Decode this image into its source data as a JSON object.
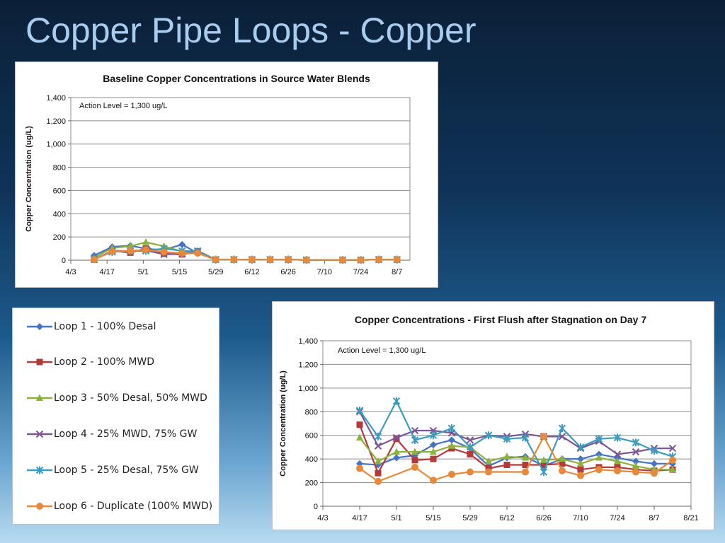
{
  "slide": {
    "title": "Copper Pipe Loops - Copper"
  },
  "series_styles": [
    {
      "name": "Loop 1 - 100% Desal",
      "color": "#4472c4",
      "marker": "diamond"
    },
    {
      "name": "Loop 2 - 100% MWD",
      "color": "#b43a3a",
      "marker": "square"
    },
    {
      "name": "Loop 3 - 50% Desal, 50% MWD",
      "color": "#8cb13e",
      "marker": "triangle"
    },
    {
      "name": "Loop 4 - 25% MWD, 75% GW",
      "color": "#7a5598",
      "marker": "x"
    },
    {
      "name": "Loop 5 - 25% Desal, 75% GW",
      "color": "#3a9cbf",
      "marker": "star"
    },
    {
      "name": "Loop 6 - Duplicate (100% MWD)",
      "color": "#e8893a",
      "marker": "circle"
    }
  ],
  "chart_data": [
    {
      "type": "line",
      "title": "Baseline Copper Concentrations  in Source Water Blends",
      "ylabel": "Copper Concentration (ug/L)",
      "xlabel": "",
      "annotation": "Action Level = 1,300  ug/L",
      "x_ticks": [
        "4/3",
        "4/17",
        "5/1",
        "5/15",
        "5/29",
        "6/12",
        "6/26",
        "7/10",
        "7/24",
        "8/7"
      ],
      "x_range": [
        "4/3",
        "8/12"
      ],
      "y_ticks": [
        "0",
        "200",
        "400",
        "600",
        "800",
        "1,000",
        "1,200",
        "1,400"
      ],
      "ylim": [
        0,
        1400
      ],
      "grid": true,
      "series": [
        {
          "points": [
            [
              "4/12",
              40
            ],
            [
              "4/19",
              115
            ],
            [
              "4/26",
              125
            ],
            [
              "5/3",
              95
            ],
            [
              "5/9",
              90
            ],
            [
              "5/16",
              135
            ],
            [
              "5/22",
              60
            ],
            [
              "5/29",
              5
            ],
            [
              "6/5",
              5
            ],
            [
              "6/12",
              5
            ],
            [
              "6/19",
              5
            ],
            [
              "6/26",
              5
            ],
            [
              "7/3",
              2
            ],
            [
              "7/17",
              2
            ],
            [
              "7/24",
              2
            ],
            [
              "7/31",
              5
            ],
            [
              "8/7",
              5
            ]
          ]
        },
        {
          "points": [
            [
              "4/12",
              5
            ],
            [
              "4/19",
              80
            ],
            [
              "4/26",
              65
            ],
            [
              "5/2",
              100
            ],
            [
              "5/9",
              55
            ],
            [
              "5/16",
              50
            ],
            [
              "5/22",
              75
            ],
            [
              "5/29",
              5
            ],
            [
              "6/5",
              5
            ],
            [
              "6/12",
              5
            ],
            [
              "6/19",
              5
            ],
            [
              "6/26",
              5
            ],
            [
              "7/3",
              2
            ],
            [
              "7/17",
              2
            ],
            [
              "7/24",
              2
            ],
            [
              "7/31",
              5
            ],
            [
              "8/7",
              5
            ]
          ]
        },
        {
          "points": [
            [
              "4/12",
              20
            ],
            [
              "4/19",
              105
            ],
            [
              "4/26",
              120
            ],
            [
              "5/2",
              155
            ],
            [
              "5/9",
              120
            ],
            [
              "5/16",
              75
            ],
            [
              "5/22",
              75
            ],
            [
              "5/29",
              5
            ],
            [
              "6/5",
              5
            ],
            [
              "6/12",
              5
            ],
            [
              "6/19",
              5
            ],
            [
              "6/26",
              5
            ],
            [
              "7/3",
              2
            ],
            [
              "7/17",
              2
            ],
            [
              "7/24",
              2
            ],
            [
              "7/31",
              5
            ],
            [
              "8/7",
              5
            ]
          ]
        },
        {
          "points": [
            [
              "4/12",
              5
            ],
            [
              "4/19",
              80
            ],
            [
              "4/26",
              80
            ],
            [
              "5/2",
              85
            ],
            [
              "5/9",
              50
            ],
            [
              "5/16",
              55
            ],
            [
              "5/22",
              80
            ],
            [
              "5/29",
              5
            ],
            [
              "6/5",
              5
            ],
            [
              "6/12",
              5
            ],
            [
              "6/19",
              5
            ],
            [
              "6/26",
              5
            ],
            [
              "7/3",
              2
            ],
            [
              "7/17",
              2
            ],
            [
              "7/24",
              2
            ],
            [
              "7/31",
              5
            ],
            [
              "8/7",
              5
            ]
          ]
        },
        {
          "points": [
            [
              "4/12",
              10
            ],
            [
              "4/19",
              70
            ],
            [
              "4/26",
              80
            ],
            [
              "5/2",
              80
            ],
            [
              "5/9",
              100
            ],
            [
              "5/16",
              80
            ],
            [
              "5/22",
              75
            ],
            [
              "5/29",
              5
            ],
            [
              "6/5",
              5
            ],
            [
              "6/12",
              5
            ],
            [
              "6/19",
              5
            ],
            [
              "6/26",
              5
            ],
            [
              "7/3",
              2
            ],
            [
              "7/17",
              2
            ],
            [
              "7/24",
              2
            ],
            [
              "7/31",
              5
            ],
            [
              "8/7",
              5
            ]
          ]
        },
        {
          "points": [
            [
              "4/12",
              5
            ],
            [
              "4/19",
              75
            ],
            [
              "4/26",
              80
            ],
            [
              "5/2",
              90
            ],
            [
              "5/9",
              70
            ],
            [
              "5/16",
              60
            ],
            [
              "5/22",
              60
            ],
            [
              "5/29",
              5
            ],
            [
              "6/5",
              5
            ],
            [
              "6/12",
              5
            ],
            [
              "6/19",
              5
            ],
            [
              "6/26",
              5
            ],
            [
              "7/3",
              2
            ],
            [
              "7/17",
              2
            ],
            [
              "7/24",
              2
            ],
            [
              "7/31",
              5
            ],
            [
              "8/7",
              5
            ]
          ]
        }
      ]
    },
    {
      "type": "line",
      "title": "Copper Concentrations - First Flush after Stagnation on Day 7",
      "ylabel": "Copper Concentration (ug/L)",
      "xlabel": "",
      "annotation": "Action Level = 1,300 ug/L",
      "x_ticks": [
        "4/3",
        "4/17",
        "5/1",
        "5/15",
        "5/29",
        "6/12",
        "6/26",
        "7/10",
        "7/24",
        "8/7",
        "8/21"
      ],
      "x_range": [
        "4/3",
        "8/21"
      ],
      "y_ticks": [
        "0",
        "200",
        "400",
        "600",
        "800",
        "1,000",
        "1,200",
        "1,400"
      ],
      "ylim": [
        0,
        1400
      ],
      "grid": true,
      "series": [
        {
          "points": [
            [
              "4/17",
              360
            ],
            [
              "4/24",
              350
            ],
            [
              "5/1",
              410
            ],
            [
              "5/8",
              430
            ],
            [
              "5/15",
              520
            ],
            [
              "5/22",
              560
            ],
            [
              "5/29",
              490
            ],
            [
              "6/5",
              340
            ],
            [
              "6/12",
              410
            ],
            [
              "6/19",
              420
            ],
            [
              "6/26",
              340
            ],
            [
              "7/3",
              400
            ],
            [
              "7/10",
              400
            ],
            [
              "7/17",
              440
            ],
            [
              "7/24",
              410
            ],
            [
              "7/31",
              380
            ],
            [
              "8/7",
              360
            ],
            [
              "8/14",
              360
            ]
          ]
        },
        {
          "points": [
            [
              "4/17",
              690
            ],
            [
              "4/24",
              280
            ],
            [
              "5/1",
              570
            ],
            [
              "5/8",
              390
            ],
            [
              "5/15",
              400
            ],
            [
              "5/22",
              490
            ],
            [
              "5/29",
              440
            ],
            [
              "6/5",
              320
            ],
            [
              "6/12",
              350
            ],
            [
              "6/19",
              350
            ],
            [
              "6/26",
              350
            ],
            [
              "7/3",
              360
            ],
            [
              "7/10",
              310
            ],
            [
              "7/17",
              330
            ],
            [
              "7/24",
              330
            ],
            [
              "7/31",
              310
            ],
            [
              "8/7",
              300
            ],
            [
              "8/14",
              310
            ]
          ]
        },
        {
          "points": [
            [
              "4/17",
              580
            ],
            [
              "4/24",
              380
            ],
            [
              "5/1",
              460
            ],
            [
              "5/8",
              460
            ],
            [
              "5/15",
              460
            ],
            [
              "5/22",
              510
            ],
            [
              "5/29",
              500
            ],
            [
              "6/5",
              380
            ],
            [
              "6/12",
              420
            ],
            [
              "6/19",
              410
            ],
            [
              "6/26",
              390
            ],
            [
              "7/3",
              400
            ],
            [
              "7/10",
              360
            ],
            [
              "7/17",
              410
            ],
            [
              "7/24",
              380
            ],
            [
              "7/31",
              340
            ],
            [
              "8/7",
              310
            ],
            [
              "8/14",
              310
            ]
          ]
        },
        {
          "points": [
            [
              "4/17",
              800
            ],
            [
              "4/24",
              510
            ],
            [
              "5/1",
              580
            ],
            [
              "5/8",
              640
            ],
            [
              "5/15",
              640
            ],
            [
              "5/22",
              620
            ],
            [
              "5/29",
              560
            ],
            [
              "6/5",
              600
            ],
            [
              "6/12",
              590
            ],
            [
              "6/19",
              610
            ],
            [
              "6/26",
              590
            ],
            [
              "7/3",
              590
            ],
            [
              "7/10",
              490
            ],
            [
              "7/17",
              550
            ],
            [
              "7/24",
              440
            ],
            [
              "7/31",
              460
            ],
            [
              "8/7",
              490
            ],
            [
              "8/14",
              490
            ]
          ]
        },
        {
          "points": [
            [
              "4/17",
              810
            ],
            [
              "4/24",
              590
            ],
            [
              "5/1",
              890
            ],
            [
              "5/8",
              560
            ],
            [
              "5/15",
              600
            ],
            [
              "5/22",
              660
            ],
            [
              "5/29",
              500
            ],
            [
              "6/5",
              600
            ],
            [
              "6/12",
              570
            ],
            [
              "6/19",
              580
            ],
            [
              "6/26",
              290
            ],
            [
              "7/3",
              660
            ],
            [
              "7/10",
              500
            ],
            [
              "7/17",
              570
            ],
            [
              "7/24",
              580
            ],
            [
              "7/31",
              540
            ],
            [
              "8/7",
              470
            ],
            [
              "8/14",
              420
            ]
          ]
        },
        {
          "points": [
            [
              "4/17",
              320
            ],
            [
              "4/24",
              210
            ],
            [
              "5/8",
              330
            ],
            [
              "5/15",
              220
            ],
            [
              "5/22",
              270
            ],
            [
              "5/29",
              290
            ],
            [
              "6/5",
              290
            ],
            [
              "6/19",
              290
            ],
            [
              "6/26",
              590
            ],
            [
              "7/3",
              300
            ],
            [
              "7/10",
              260
            ],
            [
              "7/17",
              310
            ],
            [
              "7/24",
              300
            ],
            [
              "7/31",
              290
            ],
            [
              "8/7",
              280
            ],
            [
              "8/14",
              390
            ]
          ]
        }
      ]
    }
  ]
}
